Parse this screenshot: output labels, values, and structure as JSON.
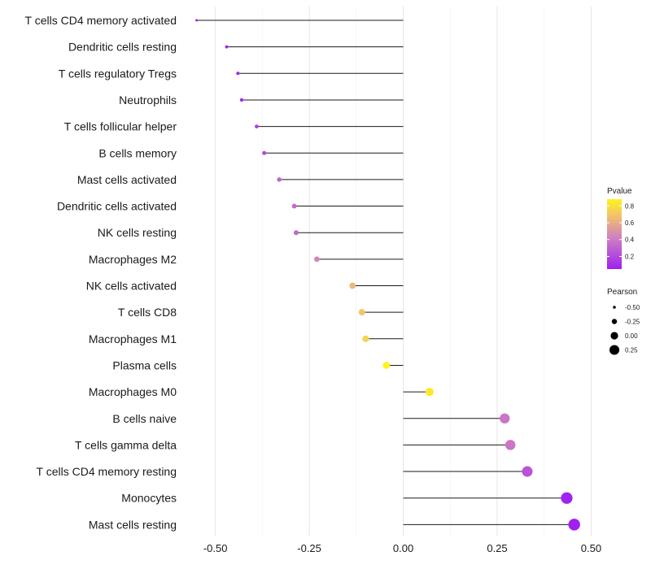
{
  "chart_data": {
    "type": "lollipop",
    "title": "",
    "xlabel": "",
    "ylabel": "",
    "xlim": [
      -0.575,
      0.525
    ],
    "xticks": [
      -0.5,
      -0.25,
      0.0,
      0.25,
      0.5
    ],
    "xtick_labels": [
      "-0.50",
      "-0.25",
      "0.00",
      "0.25",
      "0.50"
    ],
    "categories": [
      "T cells CD4 memory activated",
      "Dendritic cells resting",
      "T cells regulatory  Tregs",
      "Neutrophils",
      "T cells follicular helper",
      "B cells memory",
      "Mast cells activated",
      "Dendritic cells activated",
      "NK cells resting",
      "Macrophages M2",
      "NK cells activated",
      "T cells CD8",
      "Macrophages M1",
      "Plasma cells",
      "Macrophages M0",
      "B cells naive",
      "T cells gamma delta",
      "T cells CD4 memory resting",
      "Monocytes",
      "Mast cells resting"
    ],
    "pearson": [
      -0.55,
      -0.47,
      -0.44,
      -0.43,
      -0.39,
      -0.37,
      -0.33,
      -0.29,
      -0.285,
      -0.23,
      -0.135,
      -0.11,
      -0.1,
      -0.045,
      0.07,
      0.27,
      0.285,
      0.33,
      0.435,
      0.455
    ],
    "pvalue": [
      0.05,
      0.07,
      0.09,
      0.1,
      0.18,
      0.2,
      0.32,
      0.34,
      0.33,
      0.44,
      0.64,
      0.7,
      0.75,
      0.88,
      0.84,
      0.38,
      0.38,
      0.25,
      0.06,
      0.05
    ],
    "color_legend": {
      "title": "Pvalue",
      "ticks": [
        0.2,
        0.4,
        0.6,
        0.8
      ],
      "tick_labels": [
        "0.2",
        "0.4",
        "0.6",
        "0.8"
      ],
      "range": [
        0.05,
        0.88
      ],
      "low_color": "#a020f0",
      "mid_color": "#d080c0",
      "high_color": "#fff31a"
    },
    "size_legend": {
      "title": "Pearson",
      "values": [
        -0.5,
        -0.25,
        0.0,
        0.25
      ],
      "labels": [
        "-0.50",
        "-0.25",
        "0.00",
        "0.25"
      ]
    },
    "grid": true,
    "legend_position": "right"
  }
}
